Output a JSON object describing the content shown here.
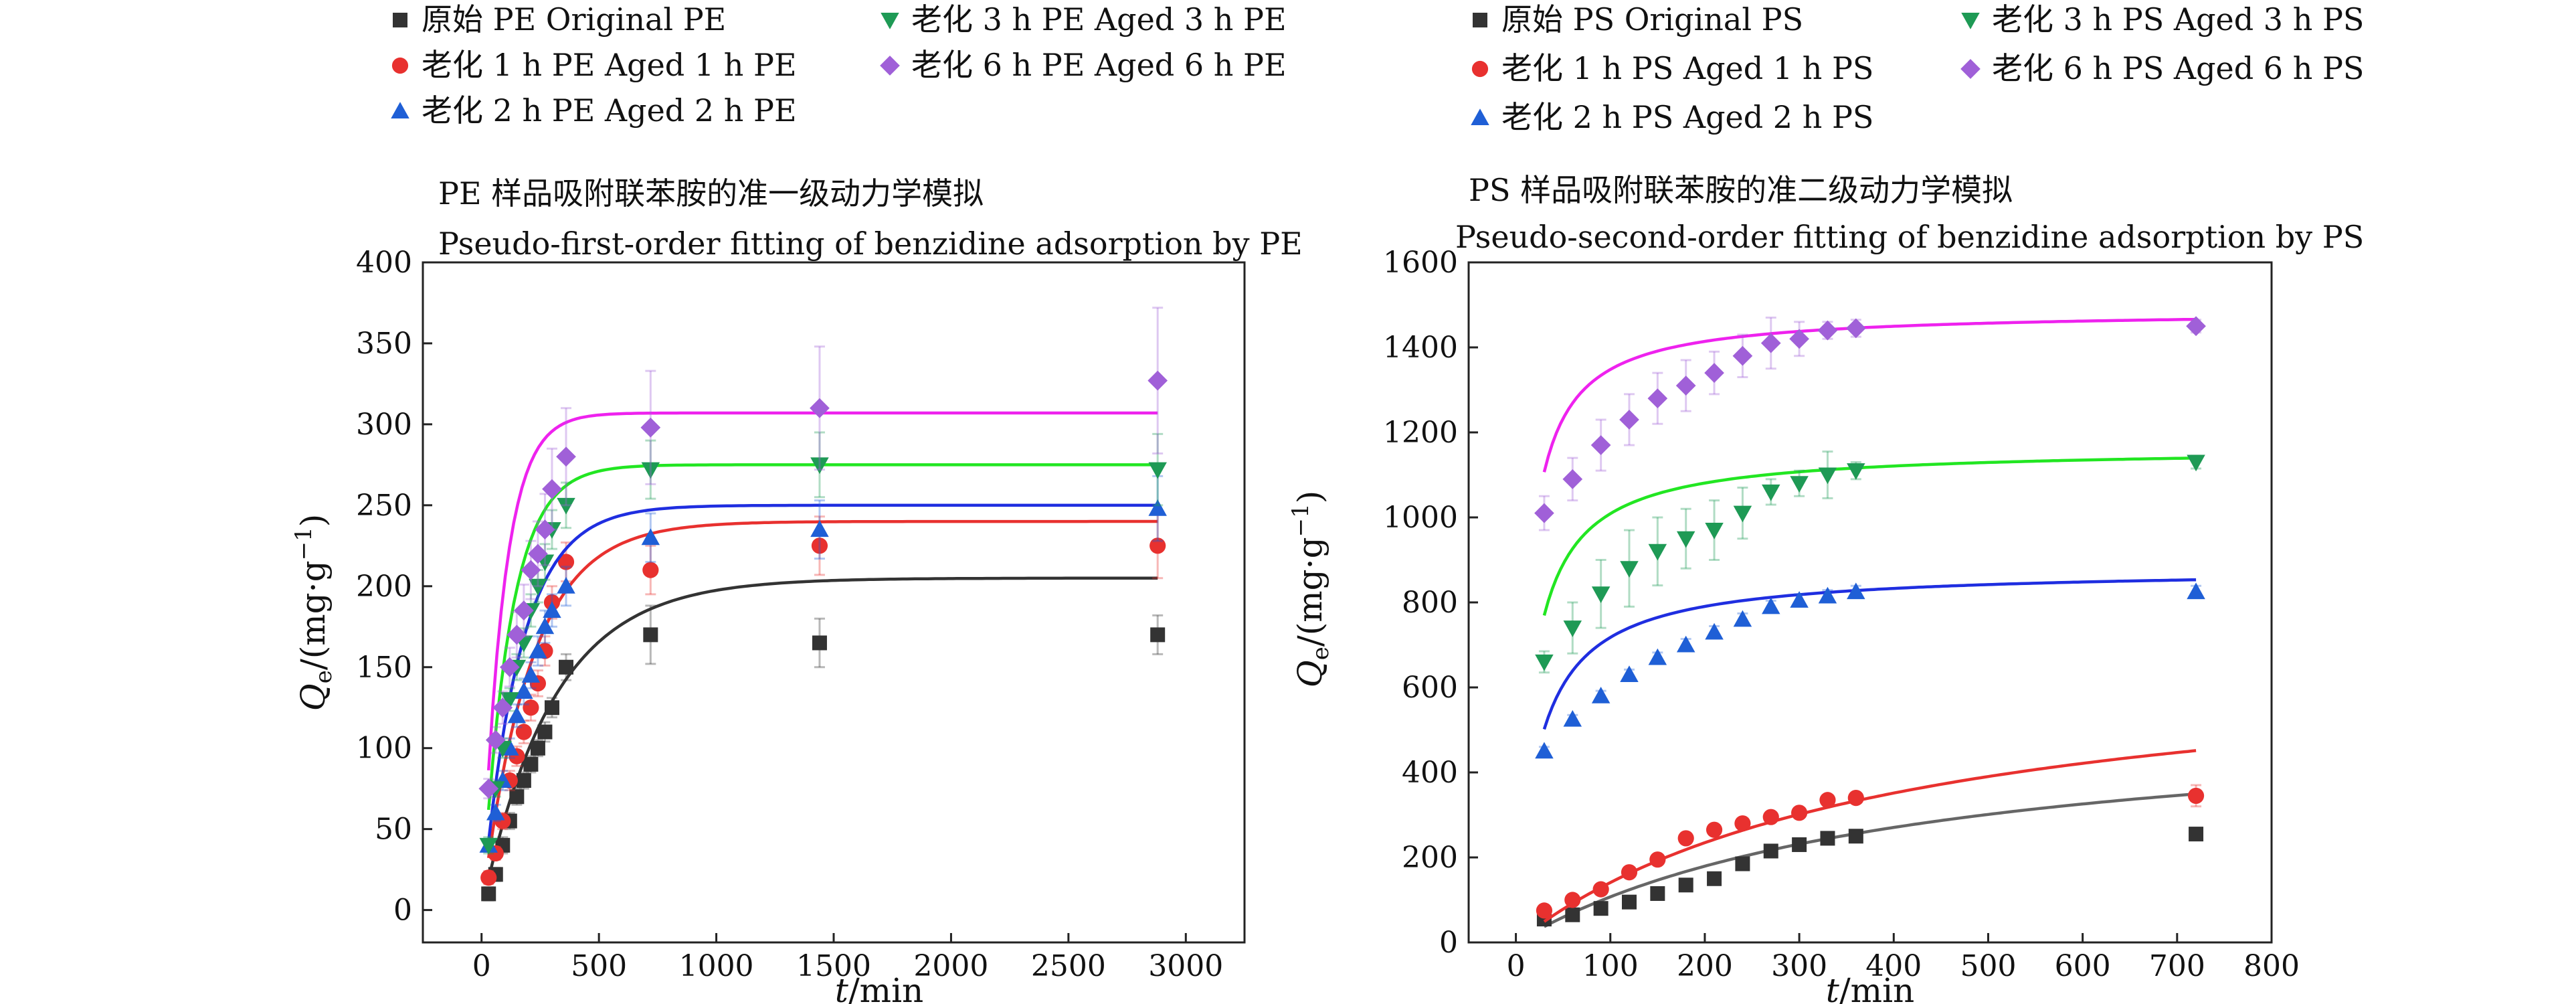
{
  "chart_data": [
    {
      "type": "scatter",
      "title": "PE 样品吸附联苯胺的准一级动力学模拟",
      "subtitle": "Pseudo-first-order fitting of benzidine adsorption by PE",
      "xlabel": "t/min",
      "ylabel": "Qe/(mg·g⁻¹)",
      "xlim": [
        -250,
        3250
      ],
      "ylim": [
        -20,
        400
      ],
      "xticks": [
        0,
        500,
        1000,
        1500,
        2000,
        2500,
        3000
      ],
      "yticks": [
        0,
        50,
        100,
        150,
        200,
        250,
        300,
        350,
        400
      ],
      "grid": false,
      "legend_position": "top",
      "series": [
        {
          "name": "原始 PE  Original PE",
          "marker": "square",
          "color": "#333333",
          "fit_color": "#333333",
          "fit": {
            "qe": 205,
            "k": 0.0033
          },
          "x": [
            30,
            60,
            90,
            120,
            150,
            180,
            210,
            240,
            270,
            300,
            360,
            720,
            1440,
            2880
          ],
          "y": [
            10,
            22,
            40,
            55,
            70,
            80,
            90,
            100,
            110,
            125,
            150,
            170,
            165,
            170
          ],
          "err": [
            4,
            4,
            5,
            5,
            5,
            5,
            5,
            5,
            6,
            6,
            8,
            18,
            15,
            12
          ]
        },
        {
          "name": "老化 1 h PE  Aged 1 h PE",
          "marker": "circle",
          "color": "#e8312f",
          "fit_color": "#e8312f",
          "fit": {
            "qe": 240,
            "k": 0.0048
          },
          "x": [
            30,
            60,
            90,
            120,
            150,
            180,
            210,
            240,
            270,
            300,
            360,
            720,
            1440,
            2880
          ],
          "y": [
            20,
            35,
            55,
            80,
            95,
            110,
            125,
            140,
            160,
            190,
            215,
            210,
            225,
            225
          ],
          "err": [
            4,
            4,
            5,
            6,
            6,
            7,
            8,
            8,
            9,
            10,
            12,
            15,
            18,
            20
          ]
        },
        {
          "name": "老化 2 h PE  Aged 2 h PE",
          "marker": "triangle-up",
          "color": "#1f5fd6",
          "fit_color": "#1f2ee0",
          "fit": {
            "qe": 250,
            "k": 0.0062
          },
          "x": [
            30,
            60,
            90,
            120,
            150,
            180,
            210,
            240,
            270,
            300,
            360,
            720,
            1440,
            2880
          ],
          "y": [
            40,
            60,
            80,
            100,
            120,
            135,
            145,
            160,
            175,
            185,
            200,
            230,
            235,
            248
          ],
          "err": [
            4,
            5,
            6,
            6,
            7,
            8,
            8,
            9,
            10,
            10,
            12,
            15,
            18,
            20
          ]
        },
        {
          "name": "老化 3 h PE  Aged 3 h PE",
          "marker": "triangle-down",
          "color": "#1e9a55",
          "fit_color": "#22e622",
          "fit": {
            "qe": 275,
            "k": 0.0085
          },
          "x": [
            30,
            60,
            90,
            120,
            150,
            180,
            210,
            240,
            270,
            300,
            360,
            720,
            1440,
            2880
          ],
          "y": [
            40,
            75,
            100,
            130,
            150,
            165,
            185,
            200,
            215,
            235,
            250,
            272,
            275,
            272
          ],
          "err": [
            5,
            5,
            6,
            7,
            8,
            9,
            10,
            10,
            11,
            12,
            14,
            18,
            20,
            22
          ]
        },
        {
          "name": "老化 6 h PE  Aged 6 h PE",
          "marker": "diamond",
          "color": "#a060d8",
          "fit_color": "#ee22ee",
          "fit": {
            "qe": 307,
            "k": 0.011
          },
          "x": [
            30,
            60,
            90,
            120,
            150,
            180,
            210,
            240,
            270,
            300,
            360,
            720,
            1440,
            2880
          ],
          "y": [
            75,
            105,
            125,
            150,
            170,
            185,
            210,
            220,
            235,
            260,
            280,
            298,
            310,
            327
          ],
          "err": [
            6,
            8,
            10,
            12,
            14,
            16,
            18,
            20,
            22,
            25,
            30,
            35,
            38,
            45
          ]
        }
      ]
    },
    {
      "type": "scatter",
      "title": "PS 样品吸附联苯胺的准二级动力学模拟",
      "subtitle": "Pseudo-second-order fitting of benzidine adsorption by PS",
      "xlabel": "t/min",
      "ylabel": "Qe/(mg·g⁻¹)",
      "xlim": [
        -50,
        800
      ],
      "ylim": [
        0,
        1600
      ],
      "xticks": [
        0,
        100,
        200,
        300,
        400,
        500,
        600,
        700,
        800
      ],
      "yticks": [
        0,
        200,
        400,
        600,
        800,
        1000,
        1200,
        1400,
        1600
      ],
      "grid": false,
      "legend_position": "top",
      "series": [
        {
          "name": "原始 PS  Original PS",
          "marker": "square",
          "color": "#333333",
          "fit_color": "#666666",
          "fit": {
            "qe": 550,
            "k": 4.4e-06
          },
          "x": [
            30,
            60,
            90,
            120,
            150,
            180,
            210,
            240,
            270,
            300,
            330,
            360,
            720
          ],
          "y": [
            55,
            65,
            80,
            95,
            115,
            135,
            150,
            185,
            215,
            230,
            245,
            250,
            255
          ],
          "err": [
            5,
            5,
            5,
            5,
            5,
            5,
            5,
            8,
            8,
            8,
            8,
            8,
            8
          ]
        },
        {
          "name": "老化 1 h PS  Aged 1 h PS",
          "marker": "circle",
          "color": "#e8312f",
          "fit_color": "#e8312f",
          "fit": {
            "qe": 700,
            "k": 3.6e-06
          },
          "x": [
            30,
            60,
            90,
            120,
            150,
            180,
            210,
            240,
            270,
            300,
            330,
            360,
            720
          ],
          "y": [
            75,
            100,
            125,
            165,
            195,
            245,
            265,
            280,
            295,
            305,
            335,
            340,
            345
          ],
          "err": [
            6,
            6,
            6,
            6,
            6,
            8,
            8,
            8,
            8,
            8,
            10,
            10,
            25
          ]
        },
        {
          "name": "老化 2 h PS  Aged 2 h PS",
          "marker": "triangle-up",
          "color": "#1f5fd6",
          "fit_color": "#1f2ee0",
          "fit": {
            "qe": 880,
            "k": 5.02e-05
          },
          "x": [
            30,
            60,
            90,
            120,
            150,
            180,
            210,
            240,
            270,
            300,
            330,
            360,
            720
          ],
          "y": [
            450,
            525,
            580,
            630,
            670,
            700,
            730,
            760,
            790,
            805,
            815,
            825,
            825
          ],
          "err": [
            10,
            10,
            12,
            12,
            12,
            14,
            14,
            14,
            14,
            14,
            14,
            14,
            14
          ]
        },
        {
          "name": "老化 3 h PS  Aged 3 h PS",
          "marker": "triangle-down",
          "color": "#1e9a55",
          "fit_color": "#22e622",
          "fit": {
            "qe": 1164,
            "k": 5.58e-05
          },
          "x": [
            30,
            60,
            90,
            120,
            150,
            180,
            210,
            240,
            270,
            300,
            330,
            360,
            720
          ],
          "y": [
            660,
            740,
            820,
            880,
            920,
            950,
            970,
            1010,
            1060,
            1080,
            1100,
            1110,
            1130
          ],
          "err": [
            25,
            60,
            80,
            90,
            80,
            70,
            70,
            60,
            30,
            30,
            55,
            20,
            15
          ]
        },
        {
          "name": "老化 6 h PS  Aged 6 h PS",
          "marker": "diamond",
          "color": "#a060d8",
          "fit_color": "#ee22ee",
          "fit": {
            "qe": 1487,
            "k": 6.52e-05
          },
          "x": [
            30,
            60,
            90,
            120,
            150,
            180,
            210,
            240,
            270,
            300,
            330,
            360,
            720
          ],
          "y": [
            1010,
            1090,
            1170,
            1230,
            1280,
            1310,
            1340,
            1380,
            1410,
            1420,
            1440,
            1445,
            1450
          ],
          "err": [
            40,
            50,
            60,
            60,
            60,
            60,
            50,
            50,
            60,
            40,
            20,
            20,
            15
          ]
        }
      ]
    }
  ]
}
